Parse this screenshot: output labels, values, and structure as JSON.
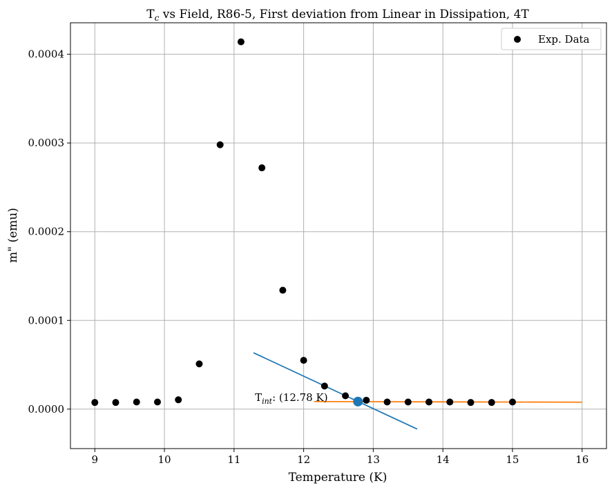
{
  "chart_data": {
    "type": "scatter",
    "title_prefix": "T",
    "title_sub": "c",
    "title_suffix": " vs Field, R86-5, First deviation from Linear in Dissipation, 4T",
    "xlabel": "Temperature (K)",
    "ylabel": "m\" (emu)",
    "xlim": [
      8.65,
      16.35
    ],
    "ylim": [
      -4.45e-05,
      0.0004355
    ],
    "xticks": [
      9,
      10,
      11,
      12,
      13,
      14,
      15,
      16
    ],
    "xtick_labels": [
      "9",
      "10",
      "11",
      "12",
      "13",
      "14",
      "15",
      "16"
    ],
    "yticks": [
      0,
      0.0001,
      0.0002,
      0.0003,
      0.0004
    ],
    "ytick_labels": [
      "0.0000",
      "0.0001",
      "0.0002",
      "0.0003",
      "0.0004"
    ],
    "grid": true,
    "legend_position": "top-right",
    "series": [
      {
        "name": "Exp. Data",
        "color": "#000000",
        "points": [
          [
            9.0,
            7.5e-06
          ],
          [
            9.3,
            7.5e-06
          ],
          [
            9.6,
            8e-06
          ],
          [
            9.9,
            8e-06
          ],
          [
            10.2,
            1.05e-05
          ],
          [
            10.5,
            5.1e-05
          ],
          [
            10.8,
            0.000298
          ],
          [
            11.1,
            0.000414
          ],
          [
            11.4,
            0.000272
          ],
          [
            11.7,
            0.000134
          ],
          [
            12.0,
            5.5e-05
          ],
          [
            12.3,
            2.6e-05
          ],
          [
            12.6,
            1.5e-05
          ],
          [
            12.9,
            1e-05
          ],
          [
            13.2,
            8e-06
          ],
          [
            13.5,
            8e-06
          ],
          [
            13.8,
            8e-06
          ],
          [
            14.1,
            8e-06
          ],
          [
            14.4,
            7.5e-06
          ],
          [
            14.7,
            7.5e-06
          ],
          [
            15.0,
            8e-06
          ]
        ]
      }
    ],
    "fit_lines": [
      {
        "color": "#1f77b4",
        "from": [
          11.28,
          6.35e-05
        ],
        "to": [
          13.63,
          -2.25e-05
        ]
      },
      {
        "color": "#ff7f0e",
        "from": [
          12.15,
          8.5e-06
        ],
        "to": [
          16.0,
          7.8e-06
        ]
      }
    ],
    "intersection": {
      "x": 12.78,
      "y": 8.5e-06,
      "color": "#1f77b4"
    },
    "annotation": {
      "prefix": "T",
      "sub": "int",
      "suffix": ": (12.78 K)",
      "x": 11.3,
      "y": 8.5e-06
    }
  }
}
